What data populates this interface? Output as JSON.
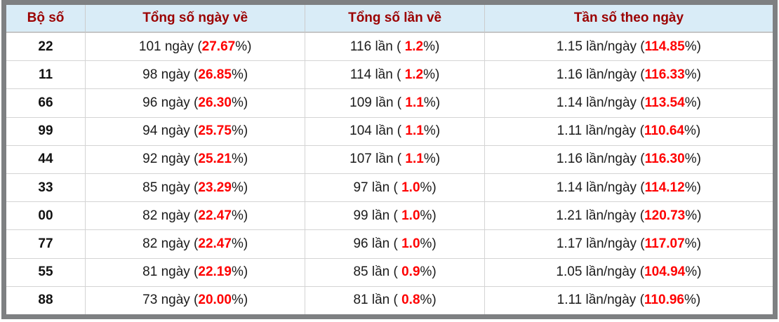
{
  "header": {
    "col_pair": "Bộ số",
    "col_days": "Tổng số ngày về",
    "col_times": "Tổng số lần về",
    "col_freq": "Tần số theo ngày"
  },
  "rows": [
    {
      "pair": "22",
      "days_prefix": "101 ngày (",
      "days_pct": "27.67",
      "days_suffix": "%)",
      "times_prefix": "116 lần ( ",
      "times_pct": "1.2",
      "times_suffix": "%)",
      "freq_prefix": "1.15 lần/ngày (",
      "freq_pct": "114.85",
      "freq_suffix": "%)"
    },
    {
      "pair": "11",
      "days_prefix": "98 ngày (",
      "days_pct": "26.85",
      "days_suffix": "%)",
      "times_prefix": "114 lần ( ",
      "times_pct": "1.2",
      "times_suffix": "%)",
      "freq_prefix": "1.16 lần/ngày (",
      "freq_pct": "116.33",
      "freq_suffix": "%)"
    },
    {
      "pair": "66",
      "days_prefix": "96 ngày (",
      "days_pct": "26.30",
      "days_suffix": "%)",
      "times_prefix": "109 lần ( ",
      "times_pct": "1.1",
      "times_suffix": "%)",
      "freq_prefix": "1.14 lần/ngày (",
      "freq_pct": "113.54",
      "freq_suffix": "%)"
    },
    {
      "pair": "99",
      "days_prefix": "94 ngày (",
      "days_pct": "25.75",
      "days_suffix": "%)",
      "times_prefix": "104 lần ( ",
      "times_pct": "1.1",
      "times_suffix": "%)",
      "freq_prefix": "1.11 lần/ngày (",
      "freq_pct": "110.64",
      "freq_suffix": "%)"
    },
    {
      "pair": "44",
      "days_prefix": "92 ngày (",
      "days_pct": "25.21",
      "days_suffix": "%)",
      "times_prefix": "107 lần ( ",
      "times_pct": "1.1",
      "times_suffix": "%)",
      "freq_prefix": "1.16 lần/ngày (",
      "freq_pct": "116.30",
      "freq_suffix": "%)"
    },
    {
      "pair": "33",
      "days_prefix": "85 ngày (",
      "days_pct": "23.29",
      "days_suffix": "%)",
      "times_prefix": "97 lần ( ",
      "times_pct": "1.0",
      "times_suffix": "%)",
      "freq_prefix": "1.14 lần/ngày (",
      "freq_pct": "114.12",
      "freq_suffix": "%)"
    },
    {
      "pair": "00",
      "days_prefix": "82 ngày (",
      "days_pct": "22.47",
      "days_suffix": "%)",
      "times_prefix": "99 lần ( ",
      "times_pct": "1.0",
      "times_suffix": "%)",
      "freq_prefix": "1.21 lần/ngày (",
      "freq_pct": "120.73",
      "freq_suffix": "%)"
    },
    {
      "pair": "77",
      "days_prefix": "82 ngày (",
      "days_pct": "22.47",
      "days_suffix": "%)",
      "times_prefix": "96 lần ( ",
      "times_pct": "1.0",
      "times_suffix": "%)",
      "freq_prefix": "1.17 lần/ngày (",
      "freq_pct": "117.07",
      "freq_suffix": "%)"
    },
    {
      "pair": "55",
      "days_prefix": "81 ngày (",
      "days_pct": "22.19",
      "days_suffix": "%)",
      "times_prefix": "85 lần ( ",
      "times_pct": "0.9",
      "times_suffix": "%)",
      "freq_prefix": "1.05 lần/ngày (",
      "freq_pct": "104.94",
      "freq_suffix": "%)"
    },
    {
      "pair": "88",
      "days_prefix": "73 ngày (",
      "days_pct": "20.00",
      "days_suffix": "%)",
      "times_prefix": "81 lần ( ",
      "times_pct": "0.8",
      "times_suffix": "%)",
      "freq_prefix": "1.11 lần/ngày (",
      "freq_pct": "110.96",
      "freq_suffix": "%)"
    }
  ],
  "colors": {
    "header_bg": "#d9ecf7",
    "header_text": "#9b0000",
    "highlight": "#ff0000",
    "frame": "#7e8082",
    "grid": "#cccccc"
  }
}
